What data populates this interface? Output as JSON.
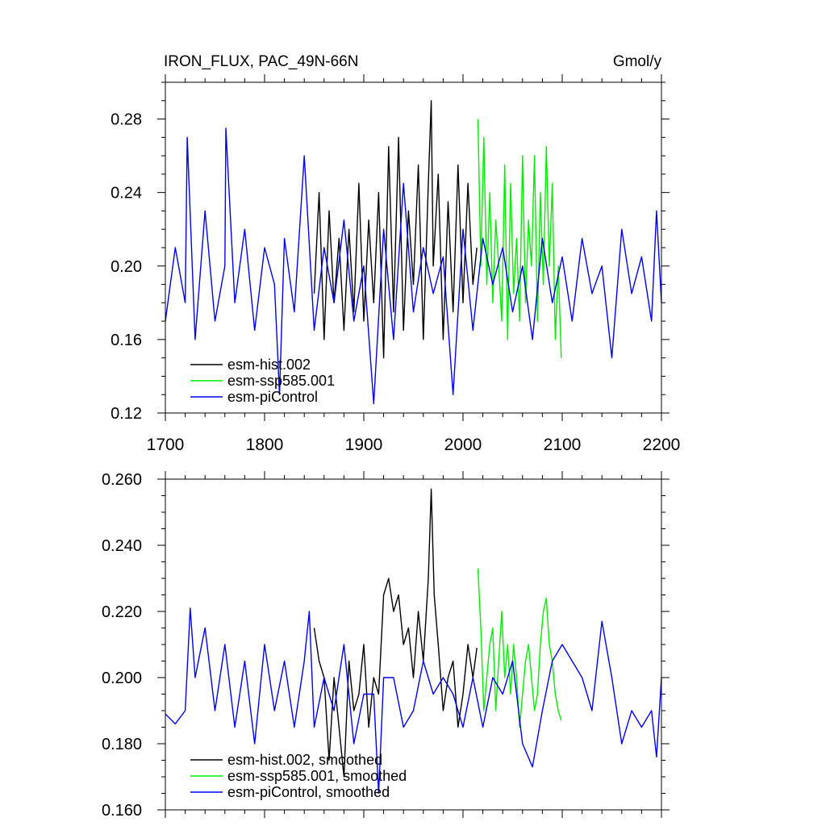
{
  "chart_data": [
    {
      "type": "line",
      "title": "IRON_FLUX, PAC_49N-66N",
      "units": "Gmol/y",
      "xlim": [
        1700,
        2200
      ],
      "ylim": [
        0.12,
        0.3
      ],
      "x_ticks": [
        1700,
        1800,
        1900,
        2000,
        2100,
        2200
      ],
      "x_tick_labels": [
        "1700",
        "1800",
        "1900",
        "2000",
        "2100",
        "2200"
      ],
      "y_ticks": [
        0.12,
        0.16,
        0.2,
        0.24,
        0.28
      ],
      "y_tick_labels": [
        "0.12",
        "0.16",
        "0.20",
        "0.24",
        "0.28"
      ],
      "grid": false,
      "legend_position": "bottom-left",
      "series": [
        {
          "name": "esm-hist.002",
          "color": "#000000",
          "x": [
            1850,
            1855,
            1860,
            1865,
            1870,
            1875,
            1880,
            1885,
            1890,
            1895,
            1900,
            1905,
            1910,
            1915,
            1920,
            1925,
            1930,
            1935,
            1940,
            1945,
            1950,
            1955,
            1960,
            1965,
            1968,
            1970,
            1975,
            1980,
            1985,
            1990,
            1995,
            2000,
            2005,
            2010,
            2014
          ],
          "values": [
            0.185,
            0.24,
            0.16,
            0.23,
            0.18,
            0.215,
            0.165,
            0.22,
            0.175,
            0.245,
            0.17,
            0.225,
            0.18,
            0.24,
            0.15,
            0.265,
            0.175,
            0.27,
            0.165,
            0.23,
            0.19,
            0.255,
            0.16,
            0.245,
            0.29,
            0.2,
            0.25,
            0.16,
            0.235,
            0.175,
            0.255,
            0.18,
            0.245,
            0.19,
            0.21
          ]
        },
        {
          "name": "esm-ssp585.001",
          "color": "#00ee00",
          "x": [
            2015,
            2018,
            2021,
            2024,
            2027,
            2030,
            2033,
            2036,
            2039,
            2042,
            2045,
            2048,
            2051,
            2054,
            2057,
            2060,
            2063,
            2066,
            2069,
            2072,
            2075,
            2078,
            2081,
            2084,
            2087,
            2090,
            2093,
            2096,
            2099
          ],
          "values": [
            0.28,
            0.2,
            0.27,
            0.19,
            0.24,
            0.18,
            0.225,
            0.2,
            0.17,
            0.255,
            0.16,
            0.245,
            0.185,
            0.215,
            0.17,
            0.26,
            0.18,
            0.225,
            0.2,
            0.26,
            0.17,
            0.24,
            0.19,
            0.265,
            0.2,
            0.245,
            0.16,
            0.2,
            0.15
          ]
        },
        {
          "name": "esm-piControl",
          "color": "#0000ee",
          "x": [
            1700,
            1710,
            1720,
            1722,
            1730,
            1740,
            1750,
            1760,
            1761,
            1770,
            1780,
            1790,
            1800,
            1810,
            1815,
            1820,
            1830,
            1840,
            1850,
            1860,
            1870,
            1880,
            1890,
            1900,
            1910,
            1920,
            1930,
            1940,
            1950,
            1960,
            1970,
            1980,
            1990,
            2000,
            2010,
            2020,
            2030,
            2040,
            2050,
            2060,
            2070,
            2080,
            2090,
            2100,
            2110,
            2120,
            2130,
            2140,
            2150,
            2160,
            2170,
            2180,
            2190,
            2195,
            2200
          ],
          "values": [
            0.17,
            0.21,
            0.18,
            0.27,
            0.16,
            0.23,
            0.17,
            0.2,
            0.275,
            0.18,
            0.22,
            0.165,
            0.21,
            0.19,
            0.13,
            0.215,
            0.175,
            0.26,
            0.165,
            0.21,
            0.18,
            0.225,
            0.17,
            0.2,
            0.125,
            0.22,
            0.16,
            0.245,
            0.175,
            0.21,
            0.185,
            0.205,
            0.13,
            0.22,
            0.165,
            0.215,
            0.19,
            0.21,
            0.175,
            0.2,
            0.16,
            0.215,
            0.18,
            0.205,
            0.17,
            0.215,
            0.185,
            0.2,
            0.15,
            0.22,
            0.185,
            0.205,
            0.17,
            0.23,
            0.18
          ]
        }
      ]
    },
    {
      "type": "line",
      "xlim": [
        1700,
        2200
      ],
      "ylim": [
        0.16,
        0.26
      ],
      "x_ticks": [
        1700,
        1800,
        1900,
        2000,
        2100,
        2200
      ],
      "y_ticks": [
        0.16,
        0.18,
        0.2,
        0.22,
        0.24,
        0.26
      ],
      "y_tick_labels": [
        "0.160",
        "0.180",
        "0.200",
        "0.220",
        "0.240",
        "0.260"
      ],
      "grid": false,
      "legend_position": "bottom-left",
      "series": [
        {
          "name": "esm-hist.002, smoothed",
          "color": "#000000",
          "x": [
            1850,
            1855,
            1860,
            1865,
            1870,
            1875,
            1880,
            1885,
            1890,
            1895,
            1900,
            1905,
            1910,
            1915,
            1920,
            1925,
            1930,
            1935,
            1940,
            1945,
            1950,
            1955,
            1960,
            1965,
            1968,
            1971,
            1975,
            1980,
            1985,
            1990,
            1995,
            2000,
            2005,
            2010,
            2014
          ],
          "values": [
            0.215,
            0.205,
            0.2,
            0.175,
            0.2,
            0.185,
            0.17,
            0.205,
            0.19,
            0.195,
            0.21,
            0.185,
            0.2,
            0.195,
            0.225,
            0.23,
            0.22,
            0.225,
            0.21,
            0.215,
            0.2,
            0.22,
            0.205,
            0.23,
            0.257,
            0.225,
            0.21,
            0.19,
            0.2,
            0.205,
            0.185,
            0.195,
            0.21,
            0.2,
            0.209
          ]
        },
        {
          "name": "esm-ssp585.001, smoothed",
          "color": "#00ee00",
          "x": [
            2015,
            2018,
            2021,
            2024,
            2027,
            2030,
            2033,
            2036,
            2039,
            2042,
            2045,
            2048,
            2051,
            2054,
            2057,
            2060,
            2063,
            2066,
            2069,
            2072,
            2075,
            2078,
            2081,
            2084,
            2087,
            2090,
            2093,
            2096,
            2099
          ],
          "values": [
            0.233,
            0.215,
            0.19,
            0.2,
            0.21,
            0.215,
            0.19,
            0.205,
            0.22,
            0.2,
            0.21,
            0.195,
            0.21,
            0.2,
            0.185,
            0.195,
            0.205,
            0.21,
            0.2,
            0.19,
            0.195,
            0.21,
            0.22,
            0.224,
            0.21,
            0.205,
            0.195,
            0.19,
            0.187
          ]
        },
        {
          "name": "esm-piControl, smoothed",
          "color": "#0000ee",
          "x": [
            1700,
            1710,
            1720,
            1725,
            1730,
            1740,
            1750,
            1760,
            1770,
            1780,
            1790,
            1800,
            1810,
            1820,
            1830,
            1840,
            1845,
            1850,
            1860,
            1870,
            1880,
            1890,
            1900,
            1910,
            1915,
            1920,
            1930,
            1940,
            1950,
            1960,
            1970,
            1980,
            1990,
            2000,
            2010,
            2020,
            2030,
            2040,
            2050,
            2060,
            2070,
            2080,
            2090,
            2100,
            2110,
            2120,
            2130,
            2140,
            2150,
            2160,
            2170,
            2180,
            2190,
            2195,
            2200
          ],
          "values": [
            0.189,
            0.186,
            0.19,
            0.221,
            0.2,
            0.215,
            0.19,
            0.21,
            0.185,
            0.205,
            0.18,
            0.21,
            0.19,
            0.205,
            0.185,
            0.205,
            0.22,
            0.185,
            0.2,
            0.19,
            0.21,
            0.18,
            0.195,
            0.195,
            0.165,
            0.2,
            0.2,
            0.185,
            0.19,
            0.205,
            0.195,
            0.2,
            0.195,
            0.185,
            0.2,
            0.185,
            0.2,
            0.195,
            0.205,
            0.18,
            0.173,
            0.19,
            0.205,
            0.21,
            0.205,
            0.2,
            0.19,
            0.217,
            0.2,
            0.18,
            0.19,
            0.185,
            0.19,
            0.176,
            0.2
          ]
        }
      ]
    }
  ]
}
